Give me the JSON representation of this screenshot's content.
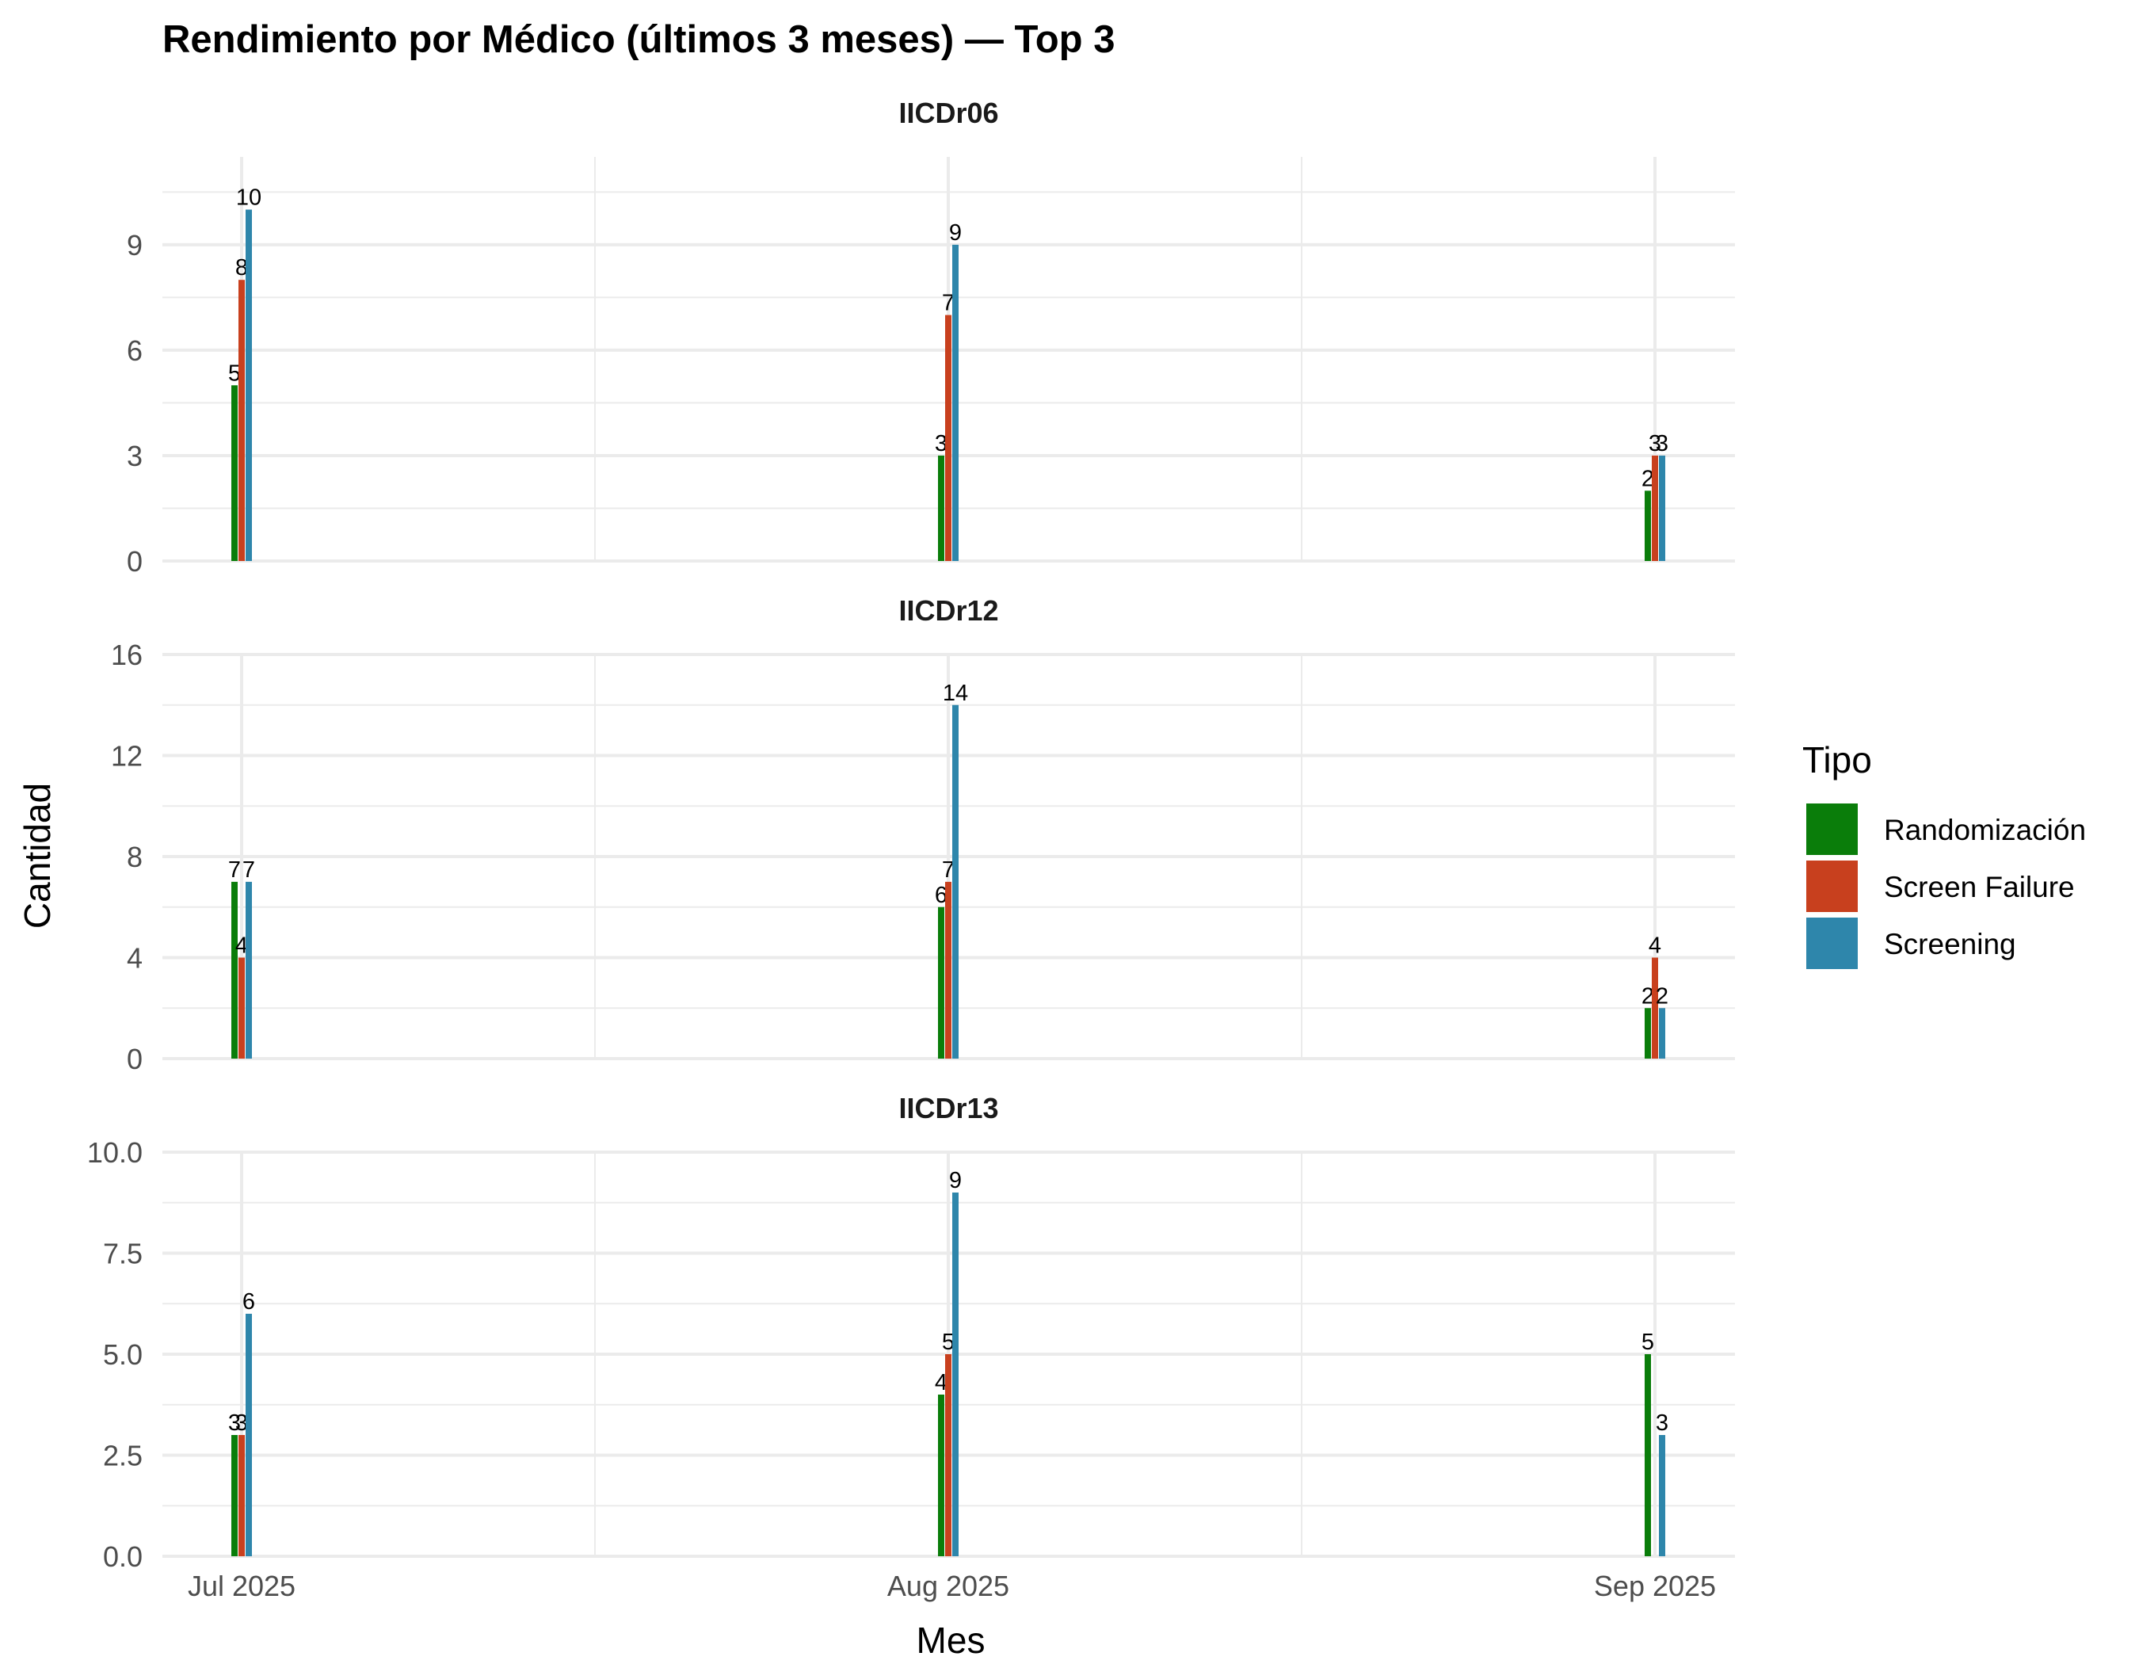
{
  "chart_data": {
    "type": "bar",
    "title": "Rendimiento por Médico (últimos 3 meses) — Top 3",
    "xlabel": "Mes",
    "ylabel": "Cantidad",
    "grid": true,
    "legend": {
      "title": "Tipo",
      "position": "right",
      "entries": [
        "Randomización",
        "Screen Failure",
        "Screening"
      ]
    },
    "colors": {
      "Randomización": "#0a7d0a",
      "Screen Failure": "#c8401e",
      "Screening": "#2e86ab"
    },
    "categories": [
      "Jul 2025",
      "Aug 2025",
      "Sep 2025"
    ],
    "panels": [
      {
        "name": "IICDr06",
        "ylim": [
          0,
          11.5
        ],
        "yticks": [
          0,
          3,
          6,
          9
        ],
        "ytick_labels": [
          "0",
          "3",
          "6",
          "9"
        ],
        "series": [
          {
            "name": "Randomización",
            "values": [
              5,
              3,
              2
            ]
          },
          {
            "name": "Screen Failure",
            "values": [
              8,
              7,
              3
            ]
          },
          {
            "name": "Screening",
            "values": [
              10,
              9,
              3
            ]
          }
        ]
      },
      {
        "name": "IICDr12",
        "ylim": [
          0,
          16
        ],
        "yticks": [
          0,
          4,
          8,
          12,
          16
        ],
        "ytick_labels": [
          "0",
          "4",
          "8",
          "12",
          "16"
        ],
        "series": [
          {
            "name": "Randomización",
            "values": [
              7,
              6,
              2
            ]
          },
          {
            "name": "Screen Failure",
            "values": [
              4,
              7,
              4
            ]
          },
          {
            "name": "Screening",
            "values": [
              7,
              14,
              2
            ]
          }
        ]
      },
      {
        "name": "IICDr13",
        "ylim": [
          0,
          10
        ],
        "yticks": [
          0,
          2.5,
          5,
          7.5,
          10
        ],
        "ytick_labels": [
          "0.0",
          "2.5",
          "5.0",
          "7.5",
          "10.0"
        ],
        "series": [
          {
            "name": "Randomización",
            "values": [
              3,
              4,
              5
            ]
          },
          {
            "name": "Screen Failure",
            "values": [
              3,
              5,
              null
            ]
          },
          {
            "name": "Screening",
            "values": [
              6,
              9,
              3
            ]
          }
        ]
      }
    ]
  }
}
